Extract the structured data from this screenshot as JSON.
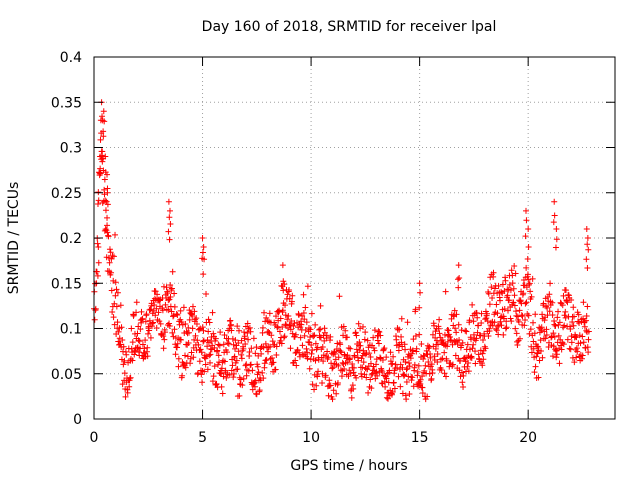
{
  "chart_data": {
    "type": "scatter",
    "title": "Day 160 of 2018, SRMTID for receiver lpal",
    "xlabel": "GPS time / hours",
    "ylabel": "SRMTID / TECUs",
    "xlim": [
      0,
      24
    ],
    "ylim": [
      0,
      0.4
    ],
    "xticks": [
      0,
      5,
      10,
      15,
      20
    ],
    "xtick_labels": [
      "0",
      "5",
      "10",
      "15",
      "20"
    ],
    "yticks": [
      0,
      0.05,
      0.1,
      0.15,
      0.2,
      0.25,
      0.3,
      0.35,
      0.4
    ],
    "ytick_labels": [
      "0",
      "0.05",
      "0.1",
      "0.15",
      "0.2",
      "0.25",
      "0.3",
      "0.35",
      "0.4"
    ],
    "grid": true,
    "marker": "+",
    "series_color": "#ff0000",
    "series": [
      {
        "name": "SRMTID",
        "x_start": 0.0,
        "x_step": 0.0167,
        "trend_points": [
          [
            0.0,
            0.12
          ],
          [
            0.15,
            0.16
          ],
          [
            0.3,
            0.3
          ],
          [
            0.5,
            0.22
          ],
          [
            0.8,
            0.15
          ],
          [
            1.2,
            0.07
          ],
          [
            1.5,
            0.06
          ],
          [
            2.0,
            0.1
          ],
          [
            2.5,
            0.11
          ],
          [
            3.0,
            0.1
          ],
          [
            3.4,
            0.13
          ],
          [
            3.8,
            0.08
          ],
          [
            4.3,
            0.08
          ],
          [
            5.0,
            0.09
          ],
          [
            5.5,
            0.07
          ],
          [
            6.5,
            0.06
          ],
          [
            7.5,
            0.06
          ],
          [
            8.5,
            0.11
          ],
          [
            9.0,
            0.11
          ],
          [
            9.5,
            0.08
          ],
          [
            10.5,
            0.06
          ],
          [
            11.5,
            0.07
          ],
          [
            12.5,
            0.06
          ],
          [
            13.5,
            0.06
          ],
          [
            14.5,
            0.07
          ],
          [
            15.2,
            0.05
          ],
          [
            15.8,
            0.07
          ],
          [
            16.5,
            0.08
          ],
          [
            17.5,
            0.09
          ],
          [
            18.5,
            0.12
          ],
          [
            19.5,
            0.12
          ],
          [
            19.9,
            0.14
          ],
          [
            20.3,
            0.09
          ],
          [
            21.0,
            0.1
          ],
          [
            21.5,
            0.09
          ],
          [
            22.0,
            0.1
          ],
          [
            22.5,
            0.09
          ],
          [
            22.8,
            0.1
          ]
        ],
        "spikes": [
          [
            0.2,
            0.19
          ],
          [
            0.28,
            0.29
          ],
          [
            0.35,
            0.35
          ],
          [
            0.4,
            0.33
          ],
          [
            0.45,
            0.34
          ],
          [
            0.52,
            0.29
          ],
          [
            0.6,
            0.27
          ],
          [
            0.62,
            0.25
          ],
          [
            3.45,
            0.24
          ],
          [
            3.5,
            0.23
          ],
          [
            5.0,
            0.2
          ],
          [
            5.05,
            0.19
          ],
          [
            8.7,
            0.17
          ],
          [
            15.0,
            0.15
          ],
          [
            16.8,
            0.17
          ],
          [
            19.9,
            0.23
          ],
          [
            20.0,
            0.21
          ],
          [
            21.2,
            0.24
          ],
          [
            21.3,
            0.21
          ],
          [
            22.7,
            0.21
          ],
          [
            22.75,
            0.2
          ]
        ],
        "x_end": 22.8,
        "noise_amplitude": 0.045
      }
    ]
  }
}
